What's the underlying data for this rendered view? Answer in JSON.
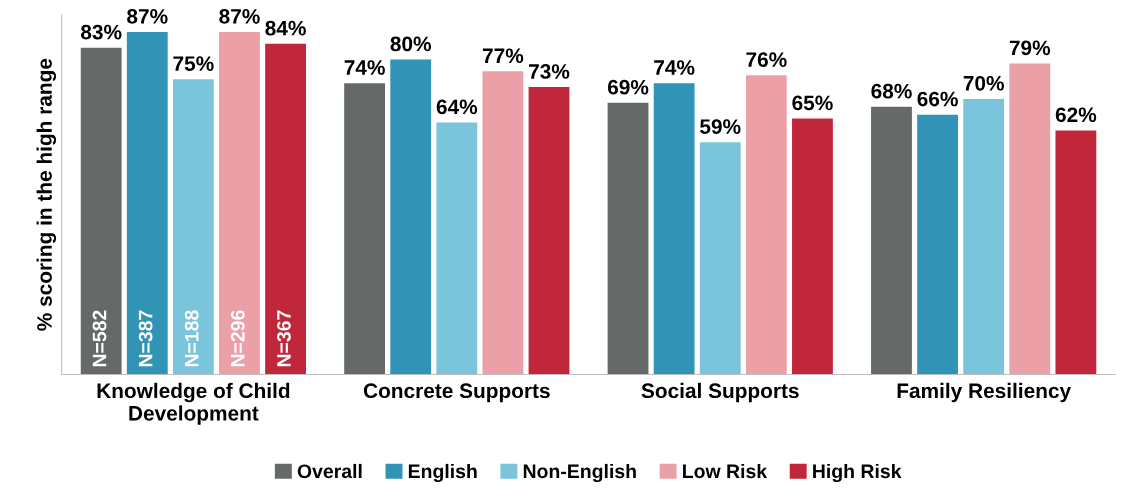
{
  "chart_data": {
    "type": "bar",
    "ylabel": "% scoring in the high range",
    "categories": [
      "Knowledge of Child\nDevelopment",
      "Concrete Supports",
      "Social Supports",
      "Family Resiliency"
    ],
    "series": [
      {
        "name": "Overall",
        "color": "#656a68",
        "values": [
          83,
          74,
          69,
          68
        ],
        "value_labels": [
          "83%",
          "74%",
          "69%",
          "68%"
        ]
      },
      {
        "name": "English",
        "color": "#3194b6",
        "values": [
          87,
          80,
          74,
          66
        ],
        "value_labels": [
          "87%",
          "80%",
          "74%",
          "66%"
        ]
      },
      {
        "name": "Non-English",
        "color": "#7ac4dc",
        "values": [
          75,
          64,
          59,
          70
        ],
        "value_labels": [
          "75%",
          "64%",
          "59%",
          "70%"
        ]
      },
      {
        "name": "Low Risk",
        "color": "#eba0a8",
        "values": [
          87,
          77,
          76,
          79
        ],
        "value_labels": [
          "87%",
          "77%",
          "76%",
          "79%"
        ]
      },
      {
        "name": "High Risk",
        "color": "#c0273a",
        "values": [
          84,
          73,
          65,
          62
        ],
        "value_labels": [
          "84%",
          "73%",
          "65%",
          "62%"
        ]
      }
    ],
    "legend": "bottom",
    "grid": false,
    "annotations": [
      "N=582",
      "N=387",
      "N=188",
      "N=296",
      "N=367"
    ]
  }
}
